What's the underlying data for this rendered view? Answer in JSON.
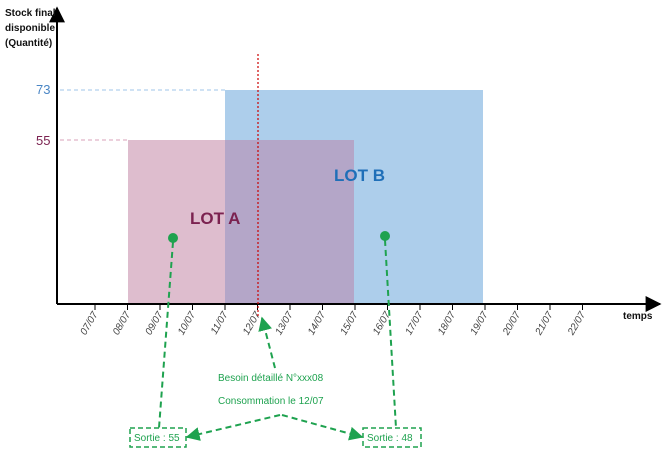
{
  "axes": {
    "y_title_lines": [
      "Stock final",
      "disponible",
      "(Quantité)"
    ],
    "x_title": "temps",
    "x_ticks": [
      "07/07",
      "08/07",
      "09/07",
      "10/07",
      "11/07",
      "12/07",
      "13/07",
      "14/07",
      "15/07",
      "16/07",
      "17/07",
      "18/07",
      "19/07",
      "20/07",
      "21/07",
      "22/07"
    ]
  },
  "levels": {
    "lot_b": "73",
    "lot_a": "55"
  },
  "lots": {
    "a": {
      "label": "LOT A",
      "color": "#d9a9bd",
      "text_color": "#7b2250",
      "quantity": 55,
      "from": "08/07",
      "to": "15/07"
    },
    "b": {
      "label": "LOT B",
      "color": "#9fc5e8",
      "text_color": "#1f6fb8",
      "quantity": 73,
      "from": "11/07",
      "to": "19/07"
    }
  },
  "need": {
    "line1": "Besoin détaillé N°xxx08",
    "line2": "Consommation le 12/07",
    "date": "12/07"
  },
  "outputs": {
    "left": "Sortie : 55",
    "right": "Sortie : 48"
  },
  "colors": {
    "axis": "#000000",
    "need_line": "#cc0000",
    "annotation": "#1ea24f",
    "level_b_text": "#4a86c5",
    "level_a_text": "#7b2250"
  }
}
